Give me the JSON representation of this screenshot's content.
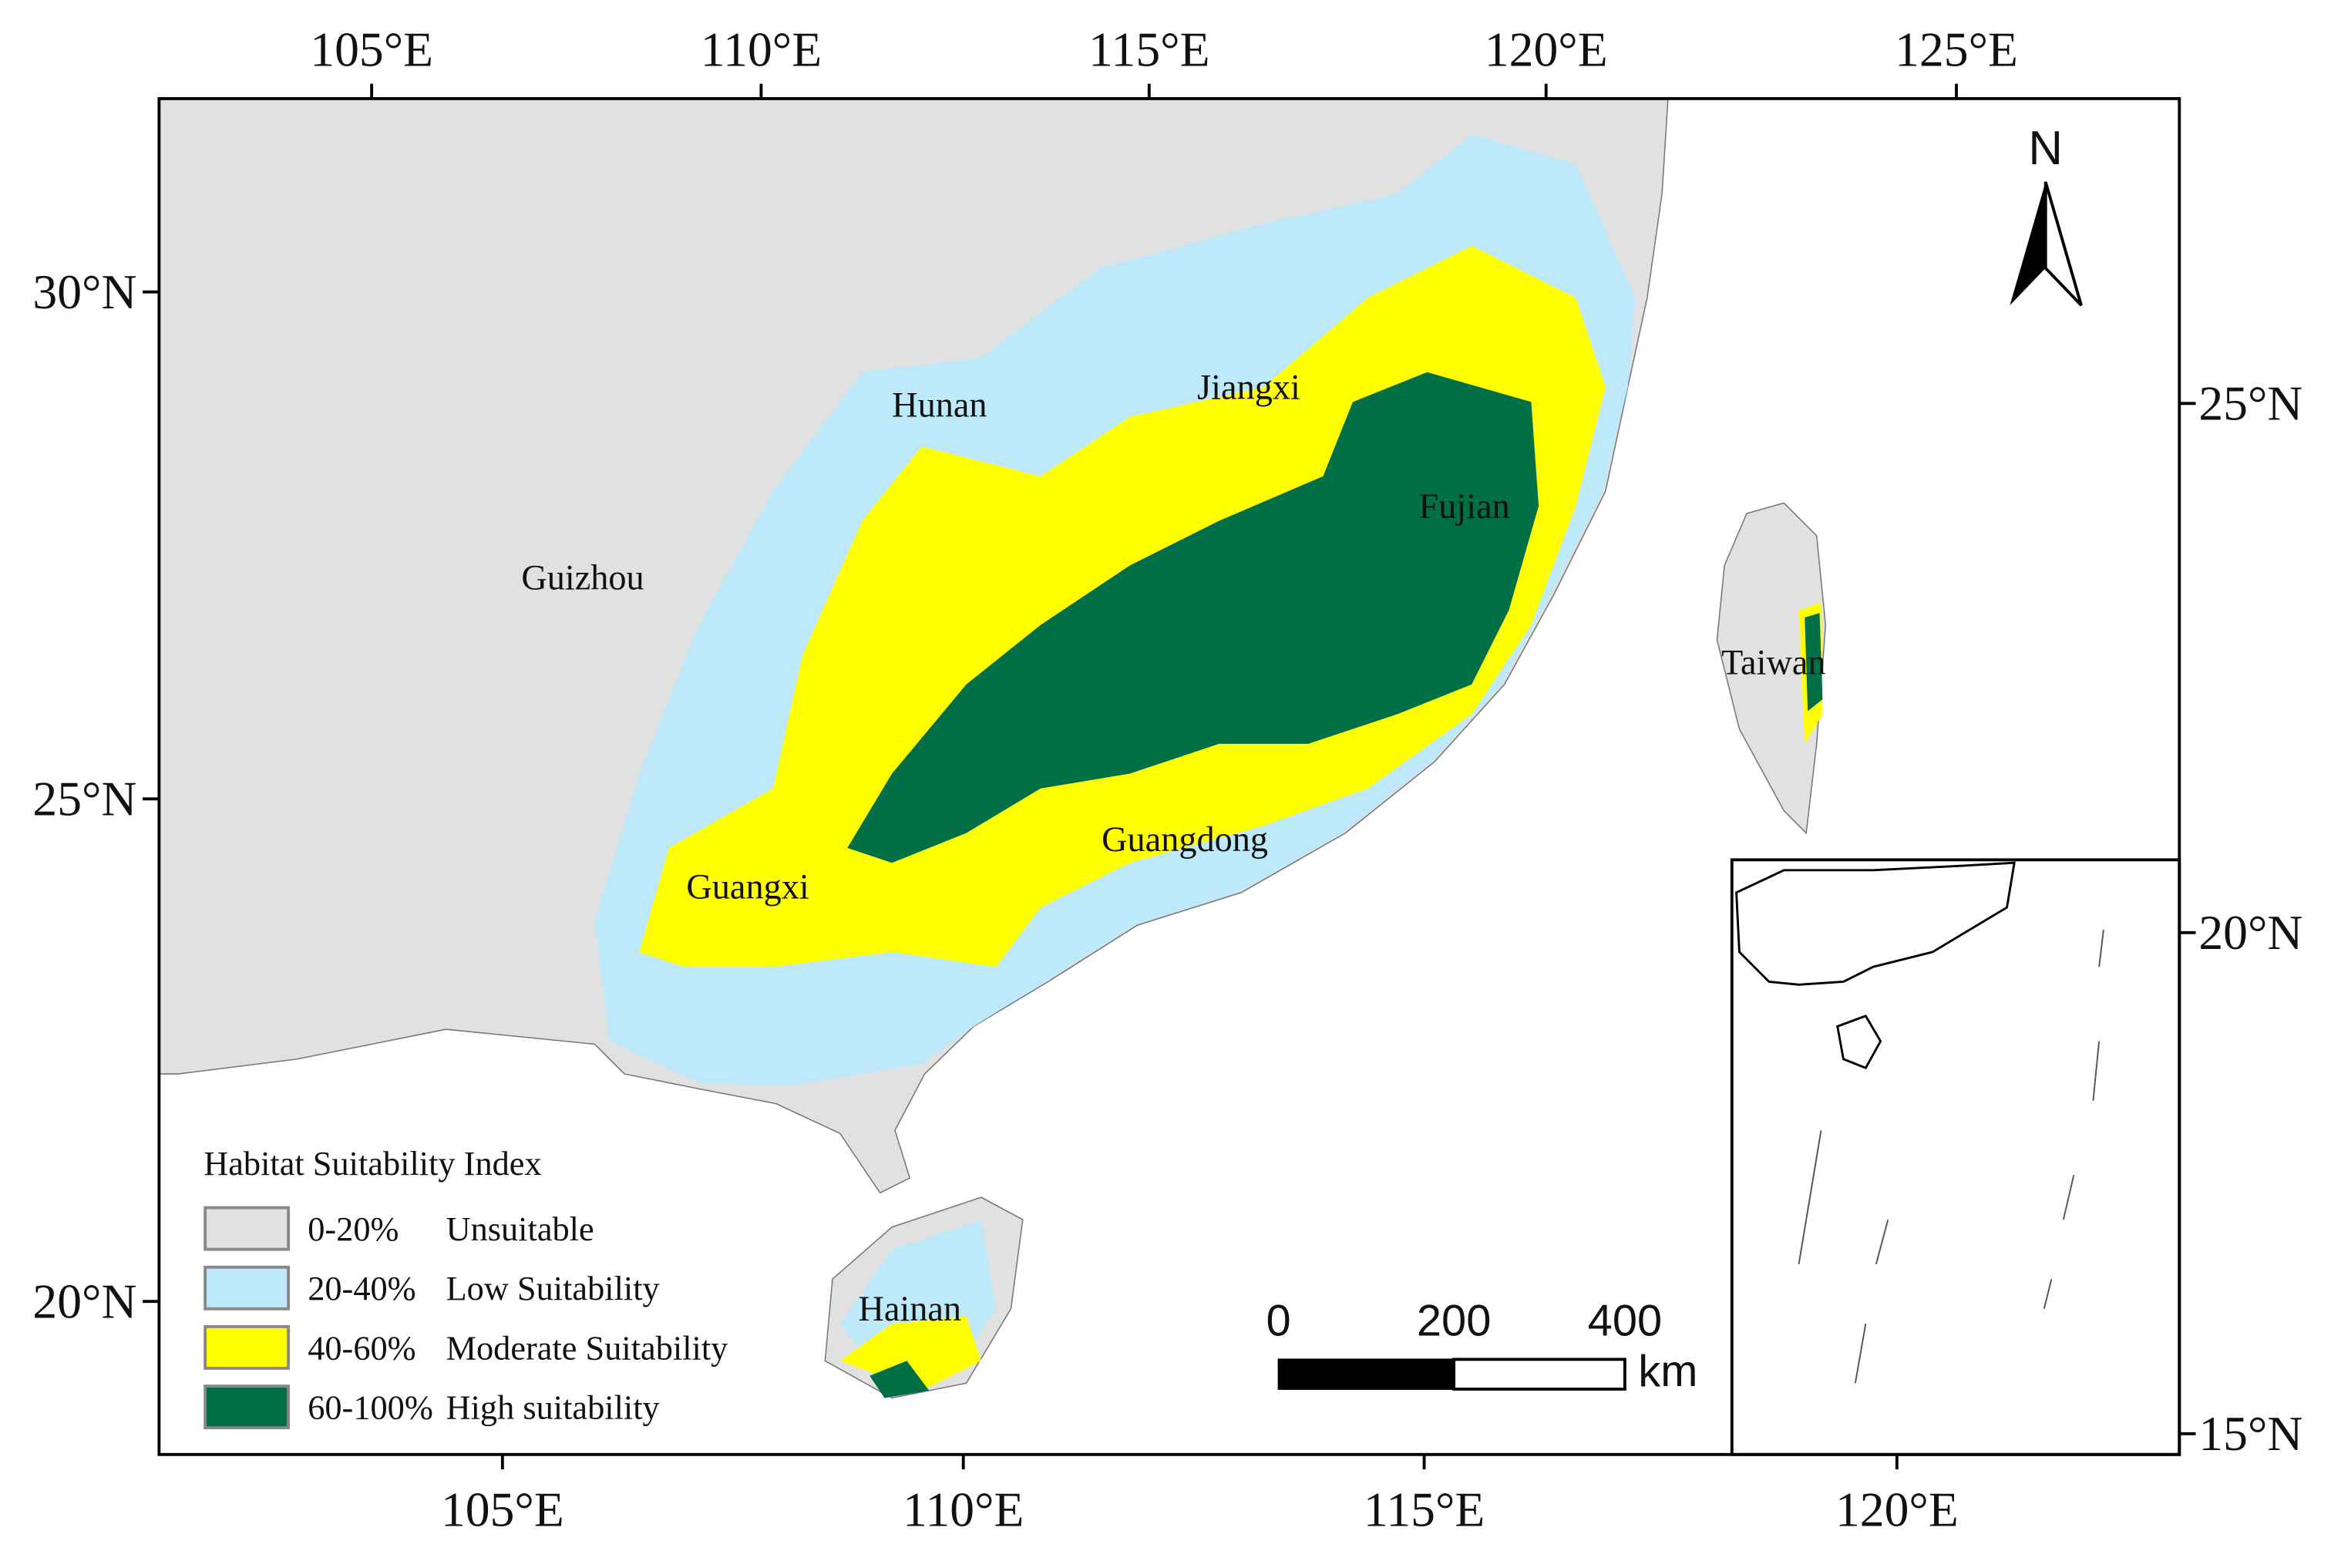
{
  "axes": {
    "top": [
      "105°E",
      "110°E",
      "115°E",
      "120°E",
      "125°E"
    ],
    "bottom": [
      "105°E",
      "110°E",
      "115°E",
      "120°E"
    ],
    "left": [
      "30°N",
      "25°N",
      "20°N"
    ],
    "right": [
      "25°N",
      "20°N",
      "15°N"
    ]
  },
  "map_labels": [
    "Hunan",
    "Jiangxi",
    "Guizhou",
    "Fujian",
    "Taiwan",
    "Guangxi",
    "Guangdong",
    "Hainan"
  ],
  "north_arrow": "N",
  "scale_bar": {
    "ticks": [
      "0",
      "200",
      "400"
    ],
    "unit": "km"
  },
  "legend": {
    "title": "Habitat Suitability Index",
    "items": [
      {
        "range": "0-20%",
        "label": "Unsuitable",
        "color": "#e1e1e1"
      },
      {
        "range": "20-40%",
        "label": "Low Suitability",
        "color": "#bde9fa"
      },
      {
        "range": "40-60%",
        "label": "Moderate Suitability",
        "color": "#ffff00"
      },
      {
        "range": "60-100%",
        "label": "High suitability",
        "color": "#006f45"
      }
    ]
  }
}
